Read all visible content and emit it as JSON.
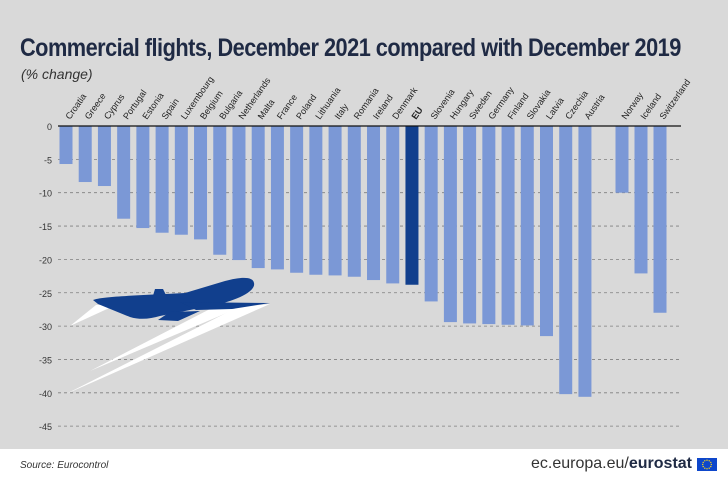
{
  "chart_data": {
    "type": "bar",
    "title": "Commercial flights, December 2021 compared with December 2019",
    "subtitle": "(% change)",
    "categories": [
      "Croatia",
      "Greece",
      "Cyprus",
      "Portugal",
      "Estonia",
      "Spain",
      "Luxembourg",
      "Belgium",
      "Bulgaria",
      "Netherlands",
      "Malta",
      "France",
      "Poland",
      "Lithuania",
      "Italy",
      "Romania",
      "Ireland",
      "Denmark",
      "EU",
      "Slovenia",
      "Hungary",
      "Sweden",
      "Germany",
      "Finland",
      "Slovakia",
      "Latvia",
      "Czechia",
      "Austria",
      "Norway",
      "Iceland",
      "Switzerland"
    ],
    "values": [
      -5.7,
      -8.4,
      -9.0,
      -13.9,
      -15.3,
      -16.0,
      -16.3,
      -17.0,
      -19.3,
      -20.1,
      -21.3,
      -21.5,
      -22.0,
      -22.3,
      -22.4,
      -22.6,
      -23.1,
      -23.6,
      -23.8,
      -26.3,
      -29.4,
      -29.6,
      -29.7,
      -29.8,
      -29.9,
      -31.5,
      -40.2,
      -40.6,
      -10.0,
      -22.1,
      -28.0
    ],
    "highlight": "EU",
    "ylim": [
      -45,
      0
    ],
    "yticks": [
      "0",
      "-5",
      "-10",
      "-15",
      "-20",
      "-25",
      "-30",
      "-35",
      "-40",
      "-45"
    ],
    "grid": "dashed horizontal",
    "colors": {
      "bar": "#7b98d6",
      "highlight": "#113f8d",
      "background": "#d9d9d9",
      "plane": "#113f8d"
    }
  },
  "footer": {
    "source": "Source: Eurocontrol",
    "brand_domain": "ec.europa.eu/",
    "brand_name": "eurostat",
    "logo_icon": "eu-flag-icon"
  }
}
